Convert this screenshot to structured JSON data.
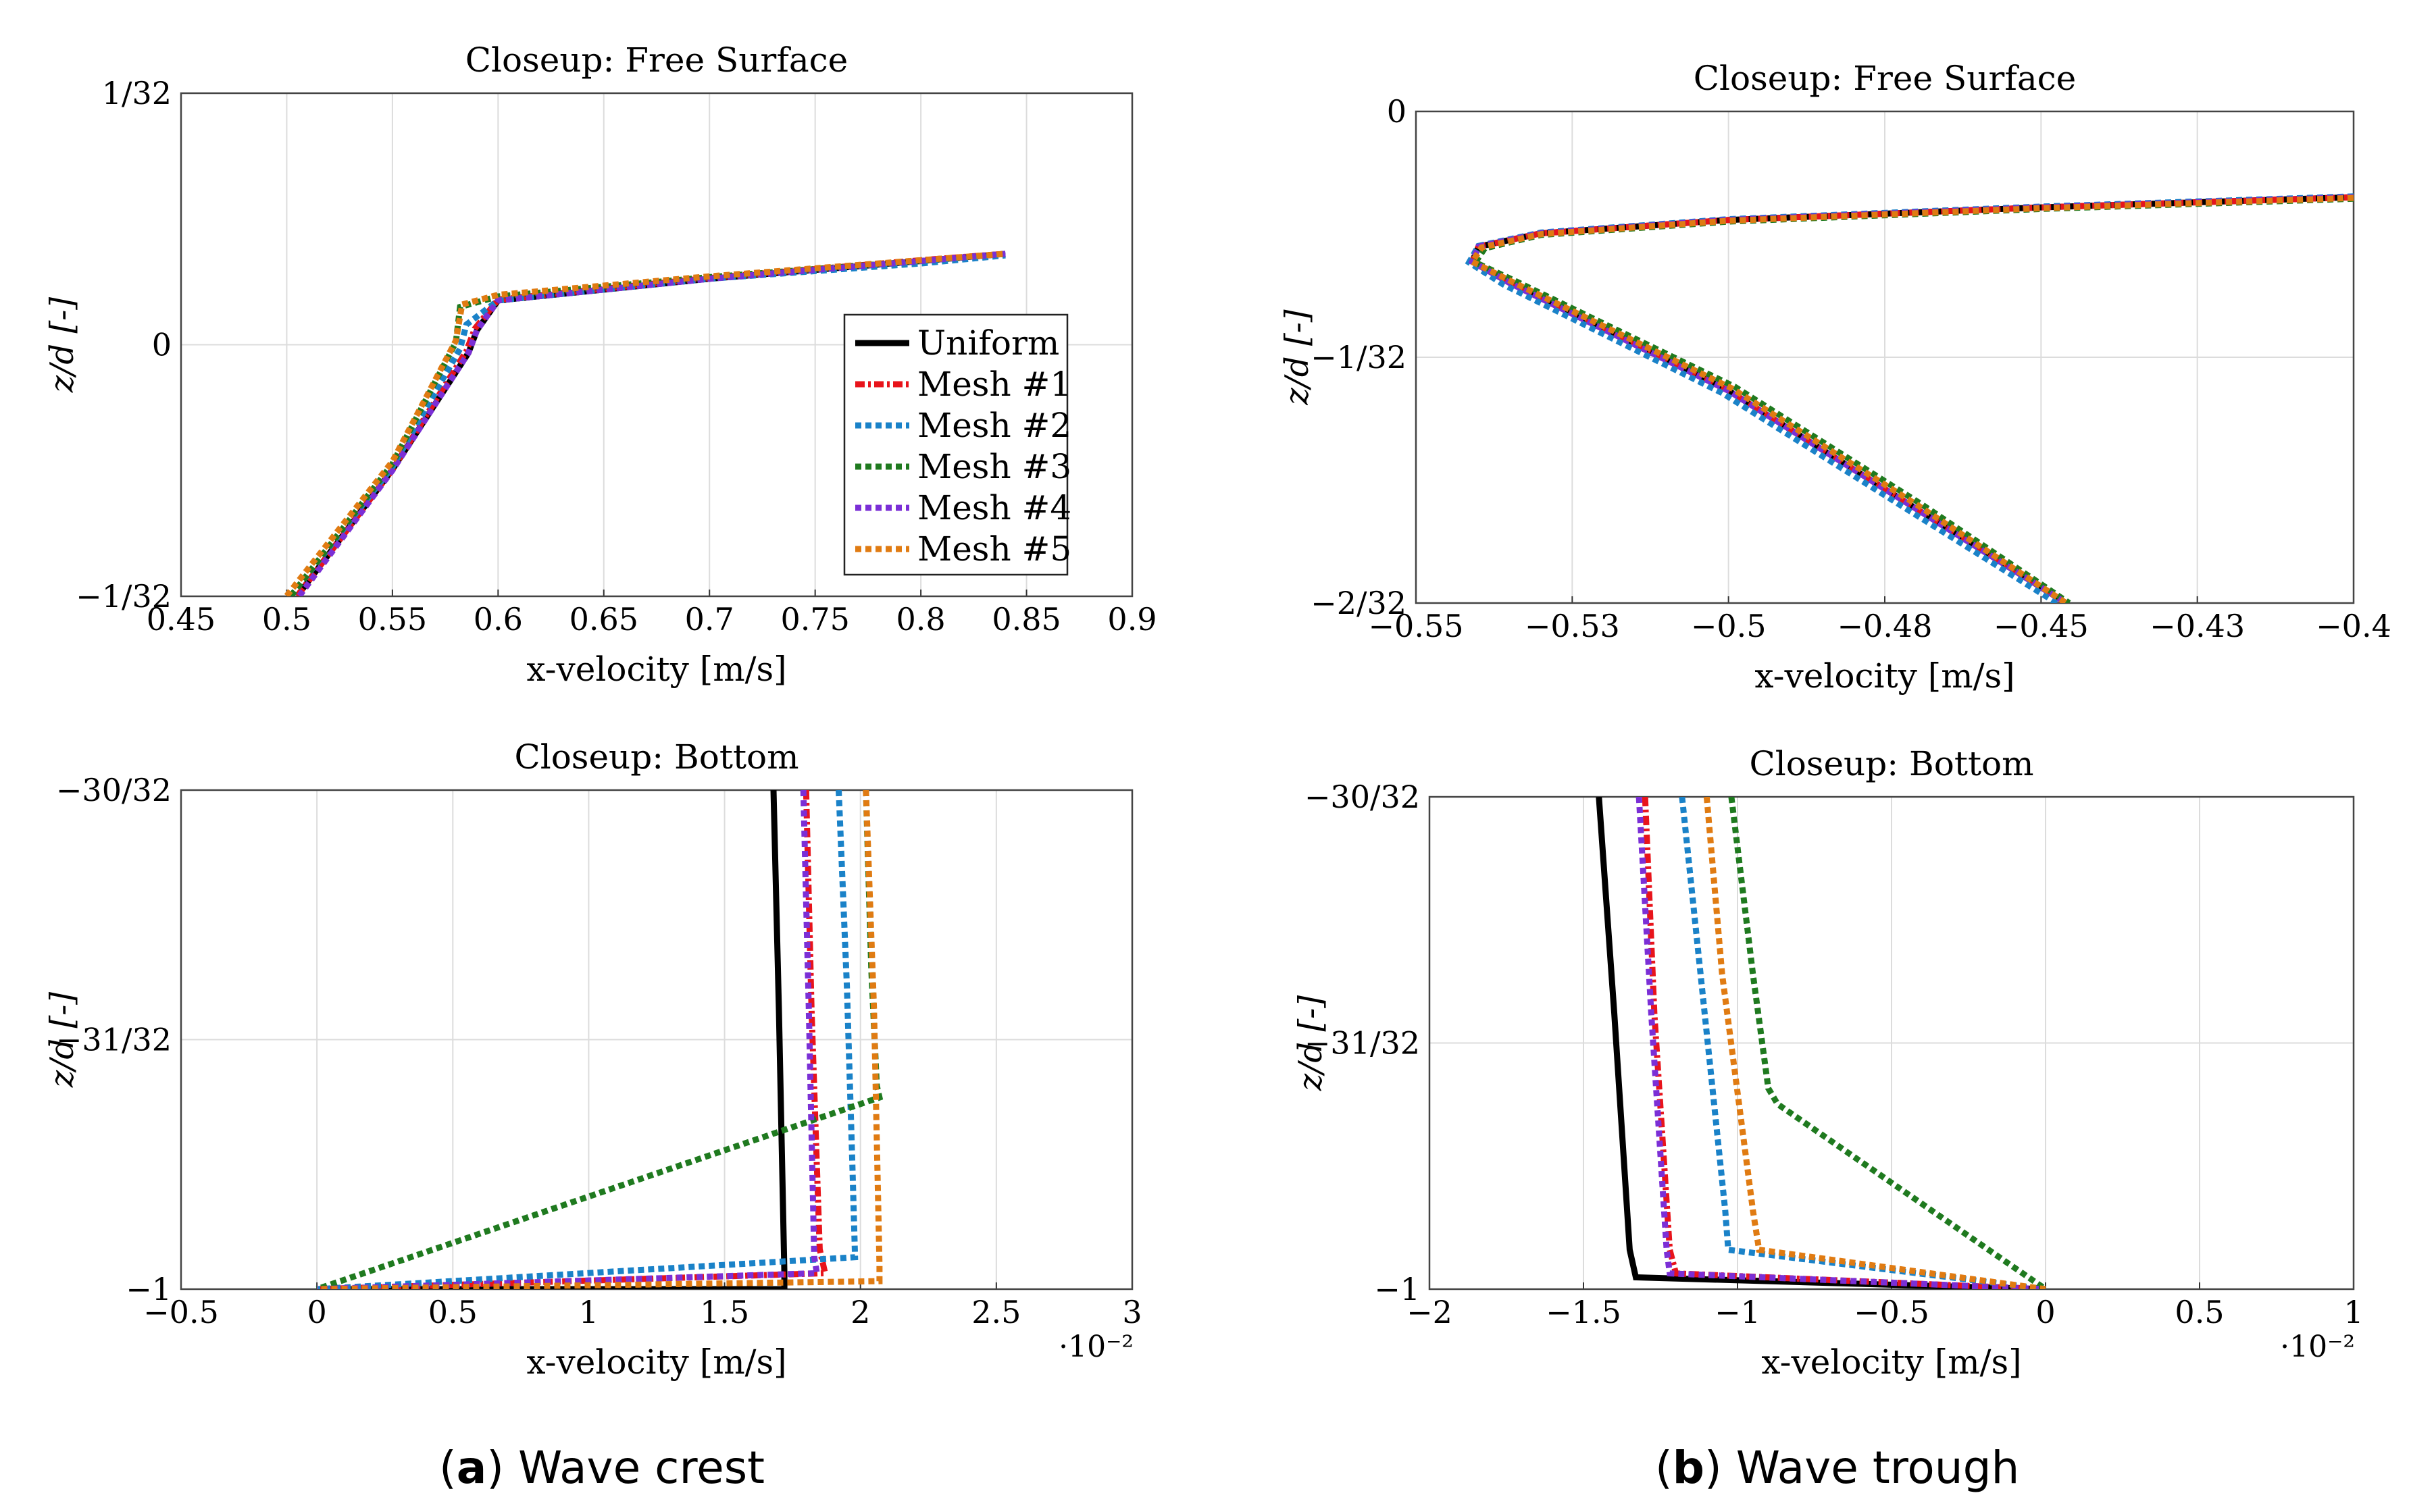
{
  "captions": {
    "a_letter": "a",
    "a_text": "Wave crest",
    "b_letter": "b",
    "b_text": "Wave trough"
  },
  "colors": {
    "Uniform": "#000000",
    "Mesh #1": "#e8141b",
    "Mesh #2": "#1a82c8",
    "Mesh #3": "#1f7a1f",
    "Mesh #4": "#7b2fd6",
    "Mesh #5": "#e07b12",
    "grid": "#dcdcdc"
  },
  "chart_data": [
    {
      "id": "crest-surface",
      "type": "line",
      "title": "Closeup: Free Surface",
      "xlabel": "x-velocity [m/s]",
      "ylabel": "z/d [-]",
      "xlim": [
        0.45,
        0.9
      ],
      "ylim": [
        -0.03125,
        0.03125
      ],
      "xticks": [
        0.45,
        0.5,
        0.55,
        0.6,
        0.65,
        0.7,
        0.75,
        0.8,
        0.85,
        0.9
      ],
      "xtick_labels": [
        "0.45",
        "0.5",
        "0.55",
        "0.6",
        "0.65",
        "0.7",
        "0.75",
        "0.8",
        "0.85",
        "0.9"
      ],
      "yticks": [
        -0.03125,
        0,
        0.03125
      ],
      "ytick_labels": [
        "−1/32",
        "0",
        "1/32"
      ],
      "xmultiplier": "",
      "legend": "lower-right",
      "series": [
        {
          "name": "Uniform",
          "x": [
            0.505,
            0.55,
            0.586,
            0.59,
            0.6,
            0.7,
            0.8,
            0.84
          ],
          "y": [
            -0.0312,
            -0.0155,
            -0.001,
            0.0018,
            0.0055,
            0.0082,
            0.0104,
            0.0113
          ]
        },
        {
          "name": "Mesh #1",
          "x": [
            0.505,
            0.55,
            0.585,
            0.589,
            0.6,
            0.7,
            0.8,
            0.84
          ],
          "y": [
            -0.0312,
            -0.0155,
            -0.0008,
            0.002,
            0.0056,
            0.0083,
            0.0105,
            0.0113
          ]
        },
        {
          "name": "Mesh #2",
          "x": [
            0.502,
            0.55,
            0.582,
            0.585,
            0.6,
            0.7,
            0.8,
            0.84
          ],
          "y": [
            -0.0312,
            -0.0152,
            -0.0005,
            0.0025,
            0.0055,
            0.0082,
            0.0101,
            0.0111
          ]
        },
        {
          "name": "Mesh #3",
          "x": [
            0.502,
            0.55,
            0.58,
            0.582,
            0.6,
            0.7,
            0.8,
            0.84
          ],
          "y": [
            -0.0312,
            -0.0148,
            0.0003,
            0.0047,
            0.006,
            0.0084,
            0.0104,
            0.0113
          ]
        },
        {
          "name": "Mesh #4",
          "x": [
            0.506,
            0.55,
            0.586,
            0.59,
            0.6,
            0.7,
            0.8,
            0.84
          ],
          "y": [
            -0.0312,
            -0.0156,
            -0.001,
            0.0018,
            0.0055,
            0.0082,
            0.0104,
            0.0113
          ]
        },
        {
          "name": "Mesh #5",
          "x": [
            0.5,
            0.55,
            0.58,
            0.583,
            0.6,
            0.7,
            0.8,
            0.84
          ],
          "y": [
            -0.0312,
            -0.0145,
            0.0005,
            0.005,
            0.0062,
            0.0085,
            0.0105,
            0.0113
          ]
        }
      ]
    },
    {
      "id": "trough-surface",
      "type": "line",
      "title": "Closeup: Free Surface",
      "xlabel": "x-velocity [m/s]",
      "ylabel": "z/d [-]",
      "xlim": [
        -0.55,
        -0.4
      ],
      "ylim": [
        -0.0625,
        0
      ],
      "xticks": [
        -0.55,
        -0.525,
        -0.5,
        -0.475,
        -0.45,
        -0.425,
        -0.4
      ],
      "xtick_labels": [
        "−0.55",
        "−0.53",
        "−0.5",
        "−0.48",
        "−0.45",
        "−0.43",
        "−0.4"
      ],
      "yticks": [
        -0.0625,
        -0.03125,
        0
      ],
      "ytick_labels": [
        "−2/32",
        "−1/32",
        "0"
      ],
      "xmultiplier": "",
      "legend": "none",
      "series": [
        {
          "name": "Uniform",
          "x": [
            -0.4,
            -0.45,
            -0.5,
            -0.53,
            -0.54,
            -0.541,
            -0.535,
            -0.5,
            -0.47,
            -0.446
          ],
          "y": [
            -0.0109,
            -0.0122,
            -0.0138,
            -0.0155,
            -0.0172,
            -0.0191,
            -0.0218,
            -0.0355,
            -0.0505,
            -0.0625
          ]
        },
        {
          "name": "Mesh #1",
          "x": [
            -0.4,
            -0.45,
            -0.5,
            -0.53,
            -0.54,
            -0.541,
            -0.535,
            -0.5,
            -0.47,
            -0.446
          ],
          "y": [
            -0.0109,
            -0.0122,
            -0.0138,
            -0.0155,
            -0.0172,
            -0.0191,
            -0.0218,
            -0.0355,
            -0.0505,
            -0.0625
          ]
        },
        {
          "name": "Mesh #2",
          "x": [
            -0.4,
            -0.45,
            -0.5,
            -0.53,
            -0.54,
            -0.5415,
            -0.536,
            -0.501,
            -0.471,
            -0.4475
          ],
          "y": [
            -0.0108,
            -0.0121,
            -0.0137,
            -0.0154,
            -0.0171,
            -0.0192,
            -0.022,
            -0.0358,
            -0.0508,
            -0.0625
          ]
        },
        {
          "name": "Mesh #3",
          "x": [
            -0.4,
            -0.45,
            -0.5,
            -0.53,
            -0.539,
            -0.5405,
            -0.534,
            -0.499,
            -0.469,
            -0.4455
          ],
          "y": [
            -0.0111,
            -0.0124,
            -0.014,
            -0.0157,
            -0.0174,
            -0.0192,
            -0.0216,
            -0.035,
            -0.05,
            -0.0625
          ]
        },
        {
          "name": "Mesh #4",
          "x": [
            -0.4,
            -0.45,
            -0.5,
            -0.53,
            -0.54,
            -0.541,
            -0.535,
            -0.5,
            -0.47,
            -0.446
          ],
          "y": [
            -0.0109,
            -0.0122,
            -0.0138,
            -0.0155,
            -0.0172,
            -0.0191,
            -0.0218,
            -0.0355,
            -0.0505,
            -0.0625
          ]
        },
        {
          "name": "Mesh #5",
          "x": [
            -0.4,
            -0.45,
            -0.5,
            -0.53,
            -0.5395,
            -0.541,
            -0.5345,
            -0.4995,
            -0.4695,
            -0.446
          ],
          "y": [
            -0.011,
            -0.0123,
            -0.0139,
            -0.0156,
            -0.0173,
            -0.0191,
            -0.0217,
            -0.0352,
            -0.0502,
            -0.0625
          ]
        }
      ]
    },
    {
      "id": "crest-bottom",
      "type": "line",
      "title": "Closeup: Bottom",
      "xlabel": "x-velocity [m/s]",
      "ylabel": "z/d [-]",
      "xlim": [
        -0.5,
        3
      ],
      "ylim": [
        -1,
        -0.9375
      ],
      "xticks": [
        -0.5,
        0,
        0.5,
        1,
        1.5,
        2,
        2.5,
        3
      ],
      "xtick_labels": [
        "−0.5",
        "0",
        "0.5",
        "1",
        "1.5",
        "2",
        "2.5",
        "3"
      ],
      "yticks": [
        -1,
        -0.96875,
        -0.9375
      ],
      "ytick_labels": [
        "−1",
        "−31/32",
        "−30/32"
      ],
      "xmultiplier": "·10⁻²",
      "legend": "none",
      "series": [
        {
          "name": "Uniform",
          "x": [
            1.68,
            1.7,
            1.72,
            1.72,
            0
          ],
          "y": [
            -0.9375,
            -0.965,
            -0.998,
            -1,
            -1
          ]
        },
        {
          "name": "Mesh #1",
          "x": [
            1.8,
            1.82,
            1.85,
            1.87,
            0
          ],
          "y": [
            -0.9375,
            -0.965,
            -0.995,
            -0.998,
            -1
          ]
        },
        {
          "name": "Mesh #2",
          "x": [
            1.92,
            1.95,
            1.97,
            1.98,
            0
          ],
          "y": [
            -0.9375,
            -0.962,
            -0.984,
            -0.996,
            -1
          ]
        },
        {
          "name": "Mesh #3",
          "x": [
            2.02,
            2.04,
            2.06,
            2.07,
            0
          ],
          "y": [
            -0.9375,
            -0.96,
            -0.9745,
            -0.976,
            -1
          ]
        },
        {
          "name": "Mesh #4",
          "x": [
            1.79,
            1.81,
            1.83,
            1.84,
            0
          ],
          "y": [
            -0.9375,
            -0.965,
            -0.996,
            -0.998,
            -1
          ]
        },
        {
          "name": "Mesh #5",
          "x": [
            2.02,
            2.05,
            2.07,
            2.07,
            0
          ],
          "y": [
            -0.9375,
            -0.965,
            -0.997,
            -0.999,
            -1
          ]
        }
      ]
    },
    {
      "id": "trough-bottom",
      "type": "line",
      "title": "Closeup: Bottom",
      "xlabel": "x-velocity [m/s]",
      "ylabel": "z/d [-]",
      "xlim": [
        -2,
        1
      ],
      "ylim": [
        -1,
        -0.9375
      ],
      "xticks": [
        -2,
        -1.5,
        -1,
        -0.5,
        0,
        0.5,
        1
      ],
      "xtick_labels": [
        "−2",
        "−1.5",
        "−1",
        "−0.5",
        "0",
        "0.5",
        "1"
      ],
      "yticks": [
        -1,
        -0.96875,
        -0.9375
      ],
      "ytick_labels": [
        "−1",
        "−31/32",
        "−30/32"
      ],
      "xmultiplier": "·10⁻²",
      "legend": "none",
      "series": [
        {
          "name": "Uniform",
          "x": [
            -1.45,
            -1.4,
            -1.35,
            -1.33,
            0
          ],
          "y": [
            -0.9375,
            -0.965,
            -0.995,
            -0.9985,
            -1
          ]
        },
        {
          "name": "Mesh #1",
          "x": [
            -1.3,
            -1.27,
            -1.22,
            -1.2,
            0
          ],
          "y": [
            -0.9375,
            -0.965,
            -0.995,
            -0.998,
            -1
          ]
        },
        {
          "name": "Mesh #2",
          "x": [
            -1.18,
            -1.12,
            -1.04,
            -1.03,
            0
          ],
          "y": [
            -0.9375,
            -0.96,
            -0.99,
            -0.995,
            -1
          ]
        },
        {
          "name": "Mesh #3",
          "x": [
            -1.02,
            -0.95,
            -0.9,
            -0.87,
            0
          ],
          "y": [
            -0.9375,
            -0.96,
            -0.9745,
            -0.9765,
            -1
          ]
        },
        {
          "name": "Mesh #4",
          "x": [
            -1.32,
            -1.28,
            -1.23,
            -1.22,
            0
          ],
          "y": [
            -0.9375,
            -0.965,
            -0.995,
            -0.998,
            -1
          ]
        },
        {
          "name": "Mesh #5",
          "x": [
            -1.1,
            -1.05,
            -0.95,
            -0.93,
            0
          ],
          "y": [
            -0.9375,
            -0.96,
            -0.99,
            -0.995,
            -1
          ]
        }
      ]
    }
  ]
}
